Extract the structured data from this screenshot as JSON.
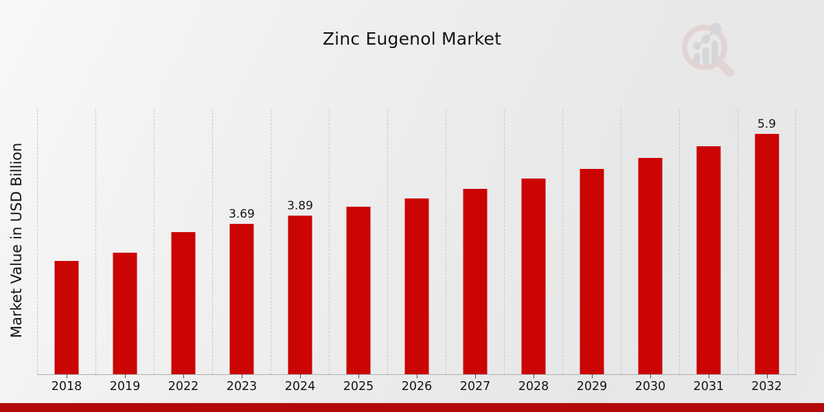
{
  "header": {
    "title": "Zinc Eugenol Market"
  },
  "chart": {
    "ylabel": "Market Value in USD Billion"
  },
  "chart_data": {
    "type": "bar",
    "title": "Zinc Eugenol Market",
    "xlabel": "",
    "ylabel": "Market Value in USD Billion",
    "categories": [
      "2018",
      "2019",
      "2022",
      "2023",
      "2024",
      "2025",
      "2026",
      "2027",
      "2028",
      "2029",
      "2030",
      "2031",
      "2032"
    ],
    "values": [
      2.79,
      2.99,
      3.49,
      3.69,
      3.89,
      4.11,
      4.32,
      4.55,
      4.8,
      5.05,
      5.32,
      5.6,
      5.9
    ],
    "data_labels": [
      "",
      "",
      "",
      "3.69",
      "3.89",
      "",
      "",
      "",
      "",
      "",
      "",
      "",
      "5.9"
    ],
    "ylim": [
      0,
      6.51
    ],
    "grid": "vertical-dashed",
    "legend": "none",
    "bar_color": "#cb0404"
  },
  "colors": {
    "bar_red": "#cb0404",
    "banner_red": "#b40707",
    "watermark_pink": "#e0c5c5",
    "watermark_gray": "#c8c8cd",
    "text": "#141414"
  },
  "watermark": {
    "icon": "magnifier-bar-chart-logo"
  }
}
